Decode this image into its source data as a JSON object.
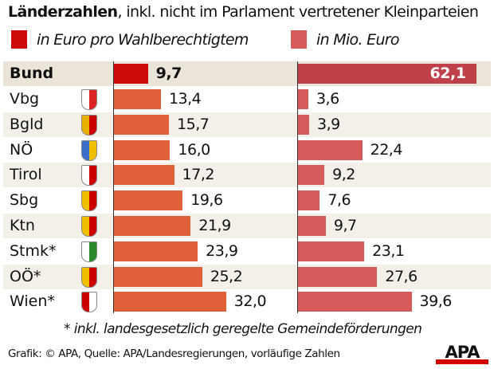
{
  "chart_data": {
    "type": "bar",
    "title_bold": "Länderzahlen",
    "title_rest": ", inkl. nicht im Parlament vertretener Kleinparteien",
    "categories": [
      "Bund",
      "Vbg",
      "Bgld",
      "NÖ",
      "Tirol",
      "Sbg",
      "Ktn",
      "Stmk*",
      "OÖ*",
      "Wien*"
    ],
    "series": [
      {
        "name": "in Euro pro Wahlberechtigtem",
        "values": [
          9.7,
          13.4,
          15.7,
          16.0,
          17.2,
          19.6,
          21.9,
          23.9,
          25.2,
          32.0
        ],
        "labels": [
          "9,7",
          "13,4",
          "15,7",
          "16,0",
          "17,2",
          "19,6",
          "21,9",
          "23,9",
          "25,2",
          "32,0"
        ],
        "color": "#e0603a",
        "highlight_color": "#cc0a0a"
      },
      {
        "name": "in Mio. Euro",
        "values": [
          62.1,
          3.6,
          3.9,
          22.4,
          9.2,
          7.6,
          9.7,
          23.1,
          27.6,
          39.6
        ],
        "labels": [
          "62,1",
          "3,6",
          "3,9",
          "22,4",
          "9,2",
          "7,6",
          "9,7",
          "23,1",
          "27,6",
          "39,6"
        ],
        "color": "#d65c5c",
        "highlight_color": "#c0404a"
      }
    ],
    "legend_position": "top",
    "grid": false
  },
  "footnote": "* inkl. landesgesetzlich geregelte Gemeindeförderungen",
  "source": "Grafik: © APA, Quelle: APA/Landesregierungen, vorläufige Zahlen",
  "logo": "APA",
  "colors": {
    "row_highlight": "#ebe4d8",
    "row_alt": "#f3f0ea"
  }
}
